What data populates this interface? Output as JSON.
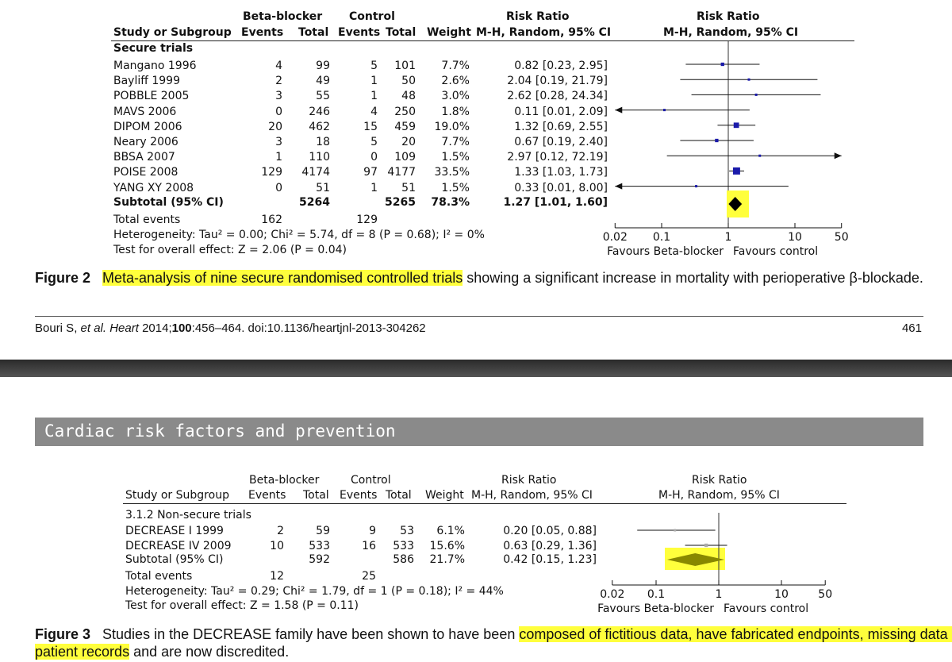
{
  "fig2": {
    "group_headers": {
      "bb": "Beta-blocker",
      "ctrl": "Control",
      "rr": "Risk Ratio",
      "rr_plot": "Risk Ratio"
    },
    "col_headers": {
      "study": "Study or Subgroup",
      "bb_events": "Events",
      "bb_total": "Total",
      "ctrl_events": "Events",
      "ctrl_total": "Total",
      "weight": "Weight",
      "rr": "M-H, Random, 95% CI",
      "rr_plot": "M-H, Random, 95% CI"
    },
    "section": "Secure trials",
    "rows": [
      {
        "study": "Mangano 1996",
        "bb_e": "4",
        "bb_t": "99",
        "c_e": "5",
        "c_t": "101",
        "w": "7.7%",
        "rr": "0.82 [0.23, 2.95]"
      },
      {
        "study": "Bayliff 1999",
        "bb_e": "2",
        "bb_t": "49",
        "c_e": "1",
        "c_t": "50",
        "w": "2.6%",
        "rr": "2.04 [0.19, 21.79]"
      },
      {
        "study": "POBBLE 2005",
        "bb_e": "3",
        "bb_t": "55",
        "c_e": "1",
        "c_t": "48",
        "w": "3.0%",
        "rr": "2.62 [0.28, 24.34]"
      },
      {
        "study": "MAVS 2006",
        "bb_e": "0",
        "bb_t": "246",
        "c_e": "4",
        "c_t": "250",
        "w": "1.8%",
        "rr": "0.11 [0.01, 2.09]"
      },
      {
        "study": "DIPOM 2006",
        "bb_e": "20",
        "bb_t": "462",
        "c_e": "15",
        "c_t": "459",
        "w": "19.0%",
        "rr": "1.32 [0.69, 2.55]"
      },
      {
        "study": "Neary 2006",
        "bb_e": "3",
        "bb_t": "18",
        "c_e": "5",
        "c_t": "20",
        "w": "7.7%",
        "rr": "0.67 [0.19, 2.40]"
      },
      {
        "study": "BBSA 2007",
        "bb_e": "1",
        "bb_t": "110",
        "c_e": "0",
        "c_t": "109",
        "w": "1.5%",
        "rr": "2.97 [0.12, 72.19]"
      },
      {
        "study": "POISE 2008",
        "bb_e": "129",
        "bb_t": "4174",
        "c_e": "97",
        "c_t": "4177",
        "w": "33.5%",
        "rr": "1.33 [1.03, 1.73]"
      },
      {
        "study": "YANG XY 2008",
        "bb_e": "0",
        "bb_t": "51",
        "c_e": "1",
        "c_t": "51",
        "w": "1.5%",
        "rr": "0.33 [0.01, 8.00]"
      }
    ],
    "subtotal": {
      "label": "Subtotal (95% CI)",
      "bb_t": "5264",
      "c_t": "5265",
      "w": "78.3%",
      "rr": "1.27 [1.01, 1.60]"
    },
    "total_events": {
      "label": "Total events",
      "bb": "162",
      "ctrl": "129"
    },
    "heterogeneity": "Heterogeneity: Tau² = 0.00; Chi² = 5.74, df = 8 (P = 0.68); I² = 0%",
    "overall": "Test for overall effect: Z = 2.06 (P = 0.04)",
    "axis_ticks": [
      "0.02",
      "0.1",
      "1",
      "10",
      "50"
    ],
    "favours_left": "Favours Beta-blocker",
    "favours_right": "Favours control",
    "caption_label": "Figure 2",
    "caption_highlight": "Meta-analysis of nine secure randomised controlled trials",
    "caption_rest": " showing a significant increase in mortality with perioperative β-blockade."
  },
  "footer": {
    "citation_authors": "Bouri S, ",
    "citation_etal": "et al. Heart",
    "citation_year": " 2014;",
    "citation_vol": "100",
    "citation_rest": ":456–464. doi:10.1136/heartjnl-2013-304262",
    "page_number": "461"
  },
  "section_banner": "Cardiac risk factors and prevention",
  "fig3": {
    "group_headers": {
      "bb": "Beta-blocker",
      "ctrl": "Control",
      "rr": "Risk Ratio",
      "rr_plot": "Risk Ratio"
    },
    "col_headers": {
      "study": "Study or Subgroup",
      "bb_events": "Events",
      "bb_total": "Total",
      "ctrl_events": "Events",
      "ctrl_total": "Total",
      "weight": "Weight",
      "rr": "M-H, Random, 95% CI",
      "rr_plot": "M-H, Random, 95% CI"
    },
    "section": "3.1.2 Non-secure trials",
    "rows": [
      {
        "study": "DECREASE I 1999",
        "bb_e": "2",
        "bb_t": "59",
        "c_e": "9",
        "c_t": "53",
        "w": "6.1%",
        "rr": "0.20 [0.05, 0.88]"
      },
      {
        "study": "DECREASE IV 2009",
        "bb_e": "10",
        "bb_t": "533",
        "c_e": "16",
        "c_t": "533",
        "w": "15.6%",
        "rr": "0.63 [0.29, 1.36]"
      }
    ],
    "subtotal": {
      "label": "Subtotal (95% CI)",
      "bb_t": "592",
      "c_t": "586",
      "w": "21.7%",
      "rr": "0.42 [0.15, 1.23]"
    },
    "total_events": {
      "label": "Total events",
      "bb": "12",
      "ctrl": "25"
    },
    "heterogeneity": "Heterogeneity: Tau² = 0.29; Chi² = 1.79, df = 1 (P = 0.18); I² = 44%",
    "overall": "Test for overall effect: Z = 1.58 (P = 0.11)",
    "axis_ticks": [
      "0.02",
      "0.1",
      "1",
      "10",
      "50"
    ],
    "favours_left": "Favours Beta-blocker",
    "favours_right": "Favours control",
    "caption_label": "Figure 3",
    "caption_plain": "Studies in the DECREASE family have been shown to have been ",
    "caption_highlight1": "composed of fictitious data, have fabricated endpoints, missing data and",
    "caption_highlight2": "patient records",
    "caption_rest": " and are now discredited."
  },
  "colors": {
    "marker": "#1a1aaa",
    "marker_grey": "#aaaaaa",
    "diamond_fill": "#000000",
    "diamond_grey": "#888800",
    "highlight": "#ffff3c",
    "banner": "#8a8a8a",
    "divider_bar": "#3a3a3a"
  }
}
